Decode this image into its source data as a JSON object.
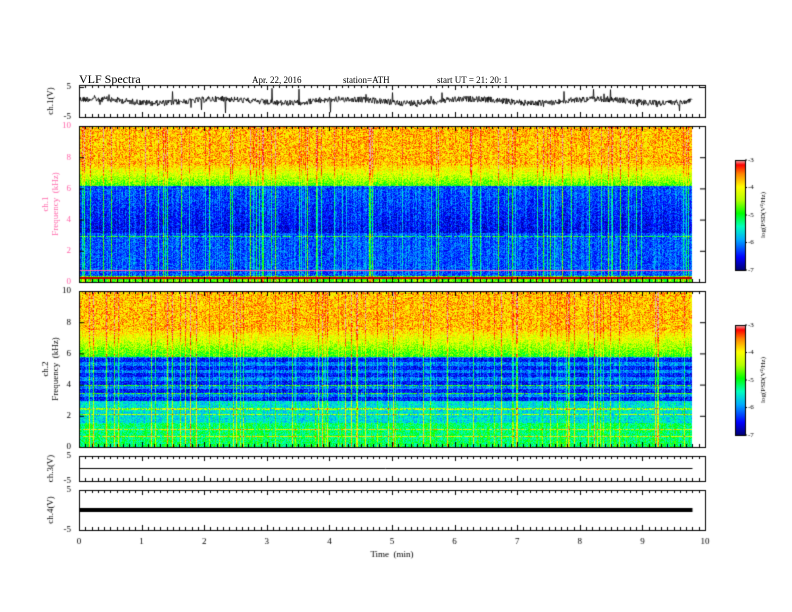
{
  "header": {
    "title": "VLF  Spectra",
    "date": "Apr. 22, 2016",
    "station": "station=ATH",
    "start": "start  UT  =    21: 20: 1"
  },
  "chart_data": [
    {
      "type": "line",
      "panel": "ch1-waveform",
      "ylabel": "ch.1(V)",
      "ylim": [
        -5,
        5
      ],
      "yticks": [
        "5",
        "-5"
      ],
      "xlim": [
        0,
        10
      ]
    },
    {
      "type": "heatmap",
      "panel": "ch1-spectrogram",
      "ylabel": "ch.1\nFrequency  (kHz)",
      "ylim": [
        0,
        10
      ],
      "yticks": [
        "0",
        "2",
        "4",
        "6",
        "8",
        "10"
      ],
      "xlim": [
        0,
        10
      ],
      "data_extent_x": [
        0,
        9.8
      ],
      "colorbar": {
        "label": "log(PSD(V²/Hz)",
        "range": [
          -7,
          -3
        ],
        "ticks": [
          "-3",
          "-4",
          "-5",
          "-6",
          "-7"
        ]
      }
    },
    {
      "type": "heatmap",
      "panel": "ch2-spectrogram",
      "ylabel": "ch.2\nFrequency  (kHz)",
      "ylim": [
        0,
        10
      ],
      "yticks": [
        "0",
        "2",
        "4",
        "6",
        "8",
        "10"
      ],
      "xlim": [
        0,
        10
      ],
      "data_extent_x": [
        0,
        9.8
      ],
      "colorbar": {
        "label": "log(PSD(V²/Hz)",
        "range": [
          -7,
          -3
        ],
        "ticks": [
          "-3",
          "-4",
          "-5",
          "-6",
          "-7"
        ]
      }
    },
    {
      "type": "line",
      "panel": "ch3-waveform",
      "ylabel": "ch.3(V)",
      "ylim": [
        -5,
        5
      ],
      "yticks": [
        "5",
        "-5"
      ],
      "xlim": [
        0,
        10
      ]
    },
    {
      "type": "line",
      "panel": "ch4-waveform",
      "ylabel": "ch.4(V)",
      "ylim": [
        -5,
        5
      ],
      "yticks": [
        "5",
        "-5"
      ],
      "xlim": [
        0,
        10
      ]
    }
  ],
  "xaxis": {
    "label": "Time  (min)",
    "ticks": [
      "0",
      "1",
      "2",
      "3",
      "4",
      "5",
      "6",
      "7",
      "8",
      "9",
      "10"
    ]
  },
  "colors": {
    "colormap": [
      "#000080",
      "#0000ff",
      "#00b4ff",
      "#00ffb4",
      "#00ff00",
      "#b4ff00",
      "#ffff00",
      "#ff8000",
      "#ff0000",
      "#e8a0a0"
    ]
  }
}
